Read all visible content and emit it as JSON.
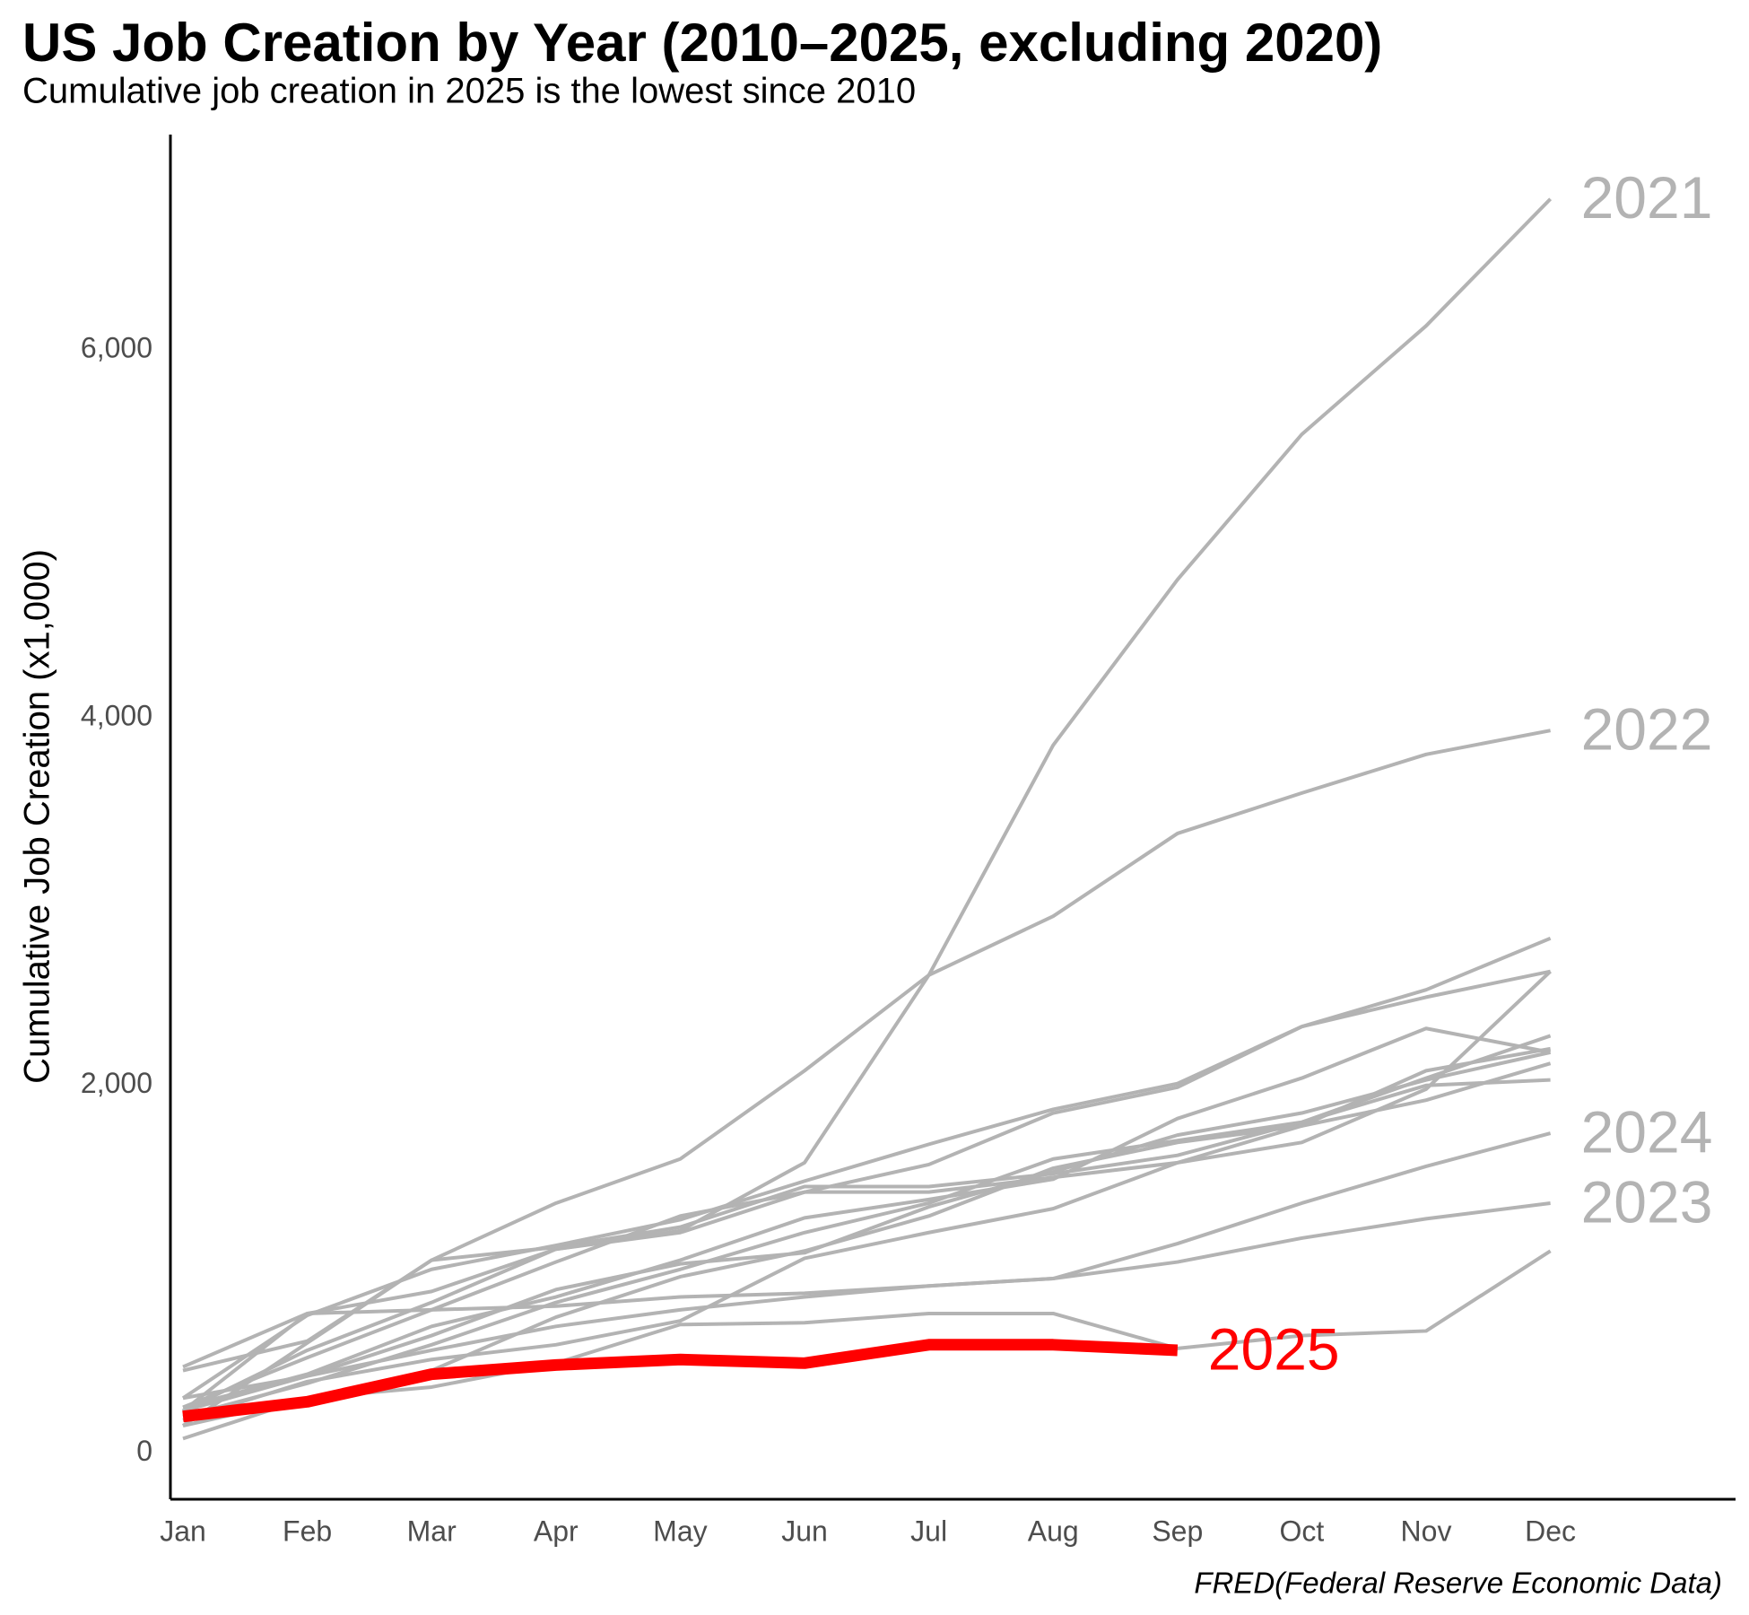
{
  "chart_data": {
    "type": "line",
    "title": "US Job Creation by Year (2010–2025, excluding 2020)",
    "subtitle": "Cumulative job creation in 2025 is the lowest since 2010",
    "y_label": "Cumulative Job Creation (x1,000)",
    "source": "FRED(Federal Reserve Economic Data)",
    "categories": [
      "Jan",
      "Feb",
      "Mar",
      "Apr",
      "May",
      "Jun",
      "Jul",
      "Aug",
      "Sep",
      "Oct",
      "Nov",
      "Dec"
    ],
    "ylim": [
      -250,
      7170
    ],
    "yticks": [
      0,
      {
        "value": 2000,
        "label": "2,000"
      },
      {
        "value": 4000,
        "label": "4,000"
      },
      {
        "value": 6000,
        "label": "6,000"
      }
    ],
    "grid": false,
    "series": [
      {
        "color": "#b3b3b3",
        "values": [
          80,
          300,
          360,
          490,
          700,
          710,
          760,
          760,
          570,
          640,
          665,
          1100
        ]
      },
      {
        "color": "#b3b3b3",
        "values": [
          150,
          600,
          1050,
          1120,
          1230,
          1450,
          1450,
          1520,
          1620,
          1800,
          2000,
          2030
        ]
      },
      {
        "color": "#b3b3b3",
        "values": [
          300,
          750,
          1000,
          1130,
          1270,
          1480,
          1680,
          1870,
          2010,
          2320,
          2520,
          2800
        ]
      },
      {
        "color": "#b3b3b3",
        "values": [
          230,
          560,
          820,
          1110,
          1200,
          1420,
          1420,
          1500,
          1580,
          1690,
          1980,
          2620
        ]
      },
      {
        "color": "#b3b3b3",
        "values": [
          250,
          520,
          780,
          1040,
          1290,
          1420,
          1570,
          1850,
          1990,
          2320,
          2480,
          2620
        ]
      },
      {
        "color": "#b3b3b3",
        "values": [
          230,
          420,
          640,
          890,
          1030,
          1090,
          1340,
          1530,
          1730,
          1850,
          2030,
          2180
        ]
      },
      {
        "color": "#b3b3b3",
        "values": [
          250,
          430,
          690,
          850,
          1050,
          1280,
          1380,
          1490,
          1820,
          2040,
          2310,
          2180
        ]
      },
      {
        "color": "#b3b3b3",
        "values": [
          200,
          380,
          590,
          820,
          1000,
          1200,
          1360,
          1600,
          1700,
          1800,
          2040,
          2270
        ]
      },
      {
        "color": "#b3b3b3",
        "values": [
          150,
          300,
          450,
          740,
          960,
          1100,
          1290,
          1550,
          1690,
          1780,
          1920,
          2120
        ]
      },
      {
        "color": "#b3b3b3",
        "values": [
          180,
          390,
          510,
          590,
          720,
          1060,
          1200,
          1330,
          1580,
          1780,
          2080,
          2200
        ]
      },
      {
        "name": "2021",
        "color": "#b3b3b3",
        "values": [
          230,
          760,
          880,
          1110,
          1210,
          1580,
          2600,
          3850,
          4750,
          5540,
          6130,
          6820
        ]
      },
      {
        "name": "2022",
        "color": "#b3b3b3",
        "values": [
          450,
          610,
          1050,
          1360,
          1600,
          2080,
          2600,
          2920,
          3370,
          3590,
          3800,
          3930
        ]
      },
      {
        "name": "2023",
        "color": "#b3b3b3",
        "values": [
          470,
          760,
          780,
          800,
          850,
          870,
          910,
          950,
          1040,
          1170,
          1275,
          1360
        ]
      },
      {
        "name": "2024",
        "color": "#b3b3b3",
        "values": [
          300,
          420,
          560,
          690,
          780,
          850,
          910,
          950,
          1140,
          1360,
          1560,
          1740
        ]
      },
      {
        "name": "2025",
        "color": "#ff0000",
        "values": [
          200,
          280,
          430,
          480,
          510,
          490,
          590,
          590,
          560,
          null,
          null,
          null
        ]
      }
    ]
  }
}
